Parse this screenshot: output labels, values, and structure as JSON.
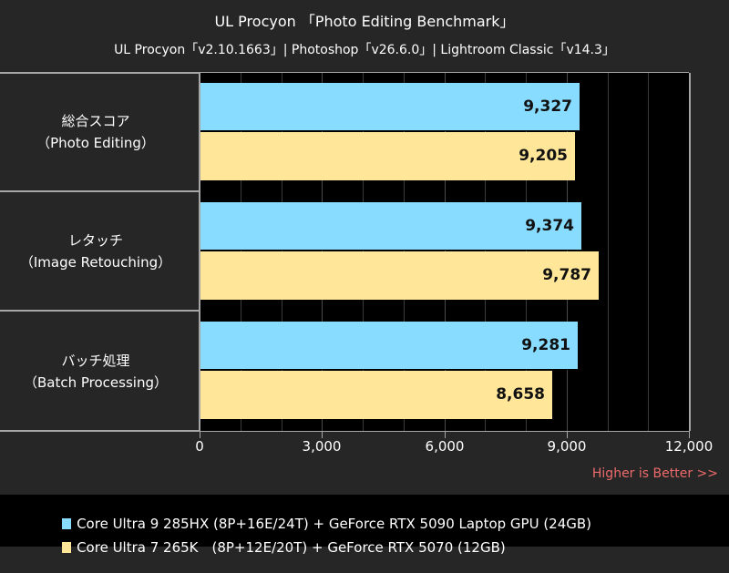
{
  "chart_data": {
    "type": "bar",
    "orientation": "horizontal",
    "title": "UL Procyon 「Photo Editing Benchmark」",
    "subtitle": "UL Procyon「v2.10.1663」| Photoshop「v26.6.0」| Lightroom Classic「v14.3」",
    "categories": [
      {
        "jp": "総合スコア",
        "en": "（Photo Editing）"
      },
      {
        "jp": "レタッチ",
        "en": "（Image Retouching）"
      },
      {
        "jp": "バッチ処理",
        "en": "（Batch Processing）"
      }
    ],
    "series": [
      {
        "name": "Core Ultra 9 285HX (8P+16E/24T) + GeForce RTX 5090 Laptop GPU (24GB)",
        "color": "#87dcff",
        "values": [
          9327,
          9374,
          9281
        ],
        "labels": [
          "9,327",
          "9,374",
          "9,281"
        ]
      },
      {
        "name": "Core Ultra 7 265K　(8P+12E/20T) + GeForce RTX 5070 (12GB)",
        "color": "#ffe699",
        "values": [
          9205,
          9787,
          8658
        ],
        "labels": [
          "9,205",
          "9,787",
          "8,658"
        ]
      }
    ],
    "xlim": [
      0,
      12000
    ],
    "xticks": [
      "0",
      "3,000",
      "6,000",
      "9,000",
      "12,000"
    ],
    "grid": true,
    "annotation": "Higher is Better >>",
    "legend_position": "bottom"
  },
  "colors": {
    "background": "#262626",
    "plot": "#000000",
    "annotation": "#ec6a6a"
  }
}
